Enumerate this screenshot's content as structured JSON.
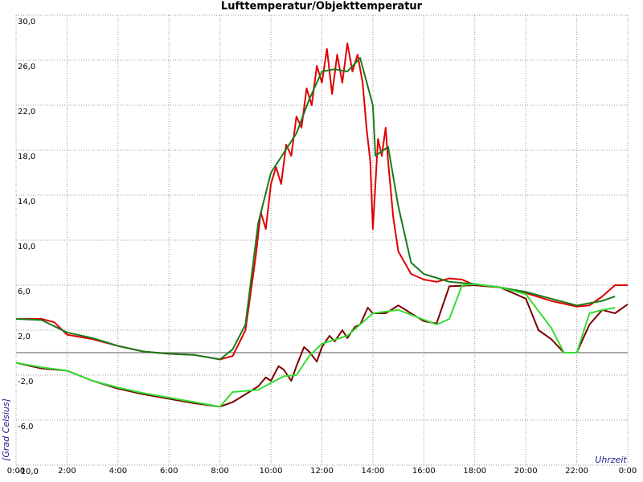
{
  "chart_data": {
    "type": "line",
    "title": "Lufttemperatur/Objekttemperatur",
    "x_label": "Uhrzeit",
    "y_label": "[Grad Celsius]",
    "xlim": [
      0,
      24
    ],
    "xticks": [
      {
        "value": 0,
        "label": "0:00"
      },
      {
        "value": 2,
        "label": "2:00"
      },
      {
        "value": 4,
        "label": "4:00"
      },
      {
        "value": 6,
        "label": "6:00"
      },
      {
        "value": 8,
        "label": "8:00"
      },
      {
        "value": 10,
        "label": "10:00"
      },
      {
        "value": 12,
        "label": "12:00"
      },
      {
        "value": 14,
        "label": "14:00"
      },
      {
        "value": 16,
        "label": "16:00"
      },
      {
        "value": 18,
        "label": "18:00"
      },
      {
        "value": 20,
        "label": "20:00"
      },
      {
        "value": 22,
        "label": "22:00"
      },
      {
        "value": 24,
        "label": "0:00"
      }
    ],
    "ylim": [
      -10,
      30
    ],
    "yticks": [
      {
        "value": -10,
        "label": "-10,0"
      },
      {
        "value": -6,
        "label": "-6,0"
      },
      {
        "value": -2,
        "label": "-2,0"
      },
      {
        "value": 2,
        "label": "2,0"
      },
      {
        "value": 6,
        "label": "6,0"
      },
      {
        "value": 10,
        "label": "10,0"
      },
      {
        "value": 14,
        "label": "14,0"
      },
      {
        "value": 18,
        "label": "18,0"
      },
      {
        "value": 22,
        "label": "22,0"
      },
      {
        "value": 26,
        "label": "26,0"
      },
      {
        "value": 30,
        "label": "30,0"
      }
    ],
    "grid": true,
    "hline": 0,
    "series": [
      {
        "color": "#e00000",
        "x": [
          0,
          1,
          1.5,
          2,
          3,
          4,
          5,
          6,
          7,
          8,
          8.5,
          9,
          9.4,
          9.6,
          9.8,
          10,
          10.2,
          10.4,
          10.6,
          10.8,
          11,
          11.2,
          11.4,
          11.6,
          11.8,
          12,
          12.2,
          12.4,
          12.6,
          12.8,
          13,
          13.2,
          13.4,
          13.6,
          13.75,
          13.9,
          14,
          14.2,
          14.35,
          14.5,
          14.6,
          14.8,
          15,
          15.5,
          16,
          16.5,
          17,
          17.5,
          18,
          19,
          20,
          21,
          22,
          22.5,
          23,
          23.5,
          24
        ],
        "values": [
          3.0,
          3.0,
          2.7,
          1.6,
          1.2,
          0.6,
          0.1,
          -0.1,
          -0.2,
          -0.6,
          -0.3,
          2.0,
          8.5,
          12.5,
          11.0,
          15.0,
          16.5,
          15.0,
          18.5,
          17.5,
          21.0,
          20.0,
          23.5,
          22.0,
          25.5,
          24.0,
          27.0,
          23.0,
          26.5,
          24.0,
          27.5,
          25.0,
          26.5,
          24.0,
          20.0,
          17.0,
          11.0,
          19.0,
          17.5,
          20.0,
          17.0,
          12.0,
          9.0,
          7.0,
          6.5,
          6.3,
          6.6,
          6.5,
          6.0,
          5.8,
          5.3,
          4.6,
          4.1,
          4.2,
          5.0,
          6.0,
          6.0
        ]
      },
      {
        "color": "#1a7a1a",
        "x": [
          0,
          1,
          2,
          3,
          4,
          5,
          6,
          7,
          8,
          8.5,
          9,
          9.5,
          10,
          11,
          11.5,
          12,
          12.5,
          13,
          13.5,
          14,
          14.1,
          14.6,
          15,
          15.5,
          16,
          17,
          18,
          19,
          20,
          21,
          22,
          23,
          23.5
        ],
        "values": [
          3.0,
          2.9,
          1.8,
          1.3,
          0.6,
          0.1,
          -0.1,
          -0.2,
          -0.6,
          0.3,
          2.5,
          11.5,
          16.0,
          19.5,
          22.5,
          25.0,
          25.2,
          25.0,
          26.2,
          22.0,
          17.5,
          18.3,
          13.0,
          8.0,
          7.0,
          6.3,
          6.1,
          5.8,
          5.4,
          4.8,
          4.2,
          4.6,
          5.0
        ]
      },
      {
        "color": "#7a0000",
        "x": [
          0,
          1,
          2,
          3,
          4,
          5,
          6,
          7,
          8,
          8.5,
          9,
          9.5,
          9.8,
          10,
          10.3,
          10.5,
          10.8,
          11,
          11.3,
          11.5,
          11.8,
          12,
          12.3,
          12.5,
          12.8,
          13,
          13.3,
          13.5,
          13.8,
          14,
          14.5,
          15,
          16,
          16.5,
          17,
          18,
          19,
          20,
          20.5,
          21,
          21.5,
          22,
          22.5,
          23,
          23.5,
          24
        ],
        "values": [
          -0.9,
          -1.4,
          -1.6,
          -2.5,
          -3.2,
          -3.7,
          -4.1,
          -4.5,
          -4.8,
          -4.4,
          -3.7,
          -3.0,
          -2.2,
          -2.5,
          -1.2,
          -1.5,
          -2.5,
          -1.2,
          0.5,
          0.1,
          -0.8,
          0.5,
          1.5,
          1.0,
          2.0,
          1.3,
          2.3,
          2.5,
          4.0,
          3.5,
          3.5,
          4.2,
          2.8,
          2.6,
          5.9,
          6.0,
          5.8,
          4.8,
          2.0,
          1.2,
          0.0,
          0.0,
          2.5,
          3.8,
          3.5,
          4.3
        ]
      },
      {
        "color": "#33dd33",
        "x": [
          0,
          1,
          2,
          3,
          4,
          5,
          6,
          7,
          8,
          8.5,
          9.5,
          10.5,
          11,
          11.5,
          12,
          13,
          14,
          15,
          16.5,
          17,
          17.5,
          18,
          19,
          20,
          21,
          21.5,
          22,
          22.5,
          23,
          23.5
        ],
        "values": [
          -0.9,
          -1.3,
          -1.6,
          -2.5,
          -3.1,
          -3.6,
          -4.0,
          -4.4,
          -4.8,
          -3.5,
          -3.3,
          -2.1,
          -2.0,
          -0.3,
          0.8,
          1.5,
          3.5,
          3.8,
          2.5,
          3.0,
          6.0,
          6.1,
          5.8,
          5.2,
          2.2,
          0.0,
          0.0,
          3.5,
          3.8,
          4.0
        ]
      }
    ]
  }
}
